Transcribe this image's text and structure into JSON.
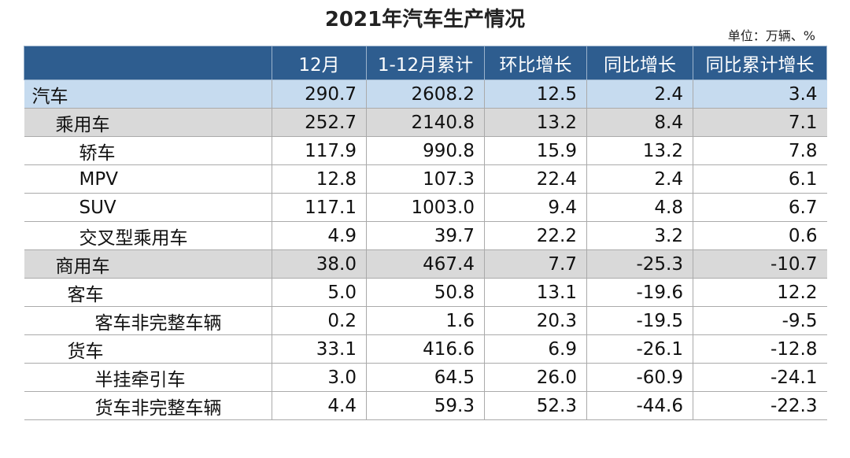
{
  "header": {
    "title": "2021年汽车生产情况",
    "unit": "单位：万辆、%"
  },
  "table": {
    "columns": [
      "",
      "12月",
      "1-12月累计",
      "环比增长",
      "同比增长",
      "同比累计增长"
    ],
    "rows": [
      [
        "汽车",
        "290.7",
        "2608.2",
        "12.5",
        "2.4",
        "3.4"
      ],
      [
        "乘用车",
        "252.7",
        "2140.8",
        "13.2",
        "8.4",
        "7.1"
      ],
      [
        "轿车",
        "117.9",
        "990.8",
        "15.9",
        "13.2",
        "7.8"
      ],
      [
        "MPV",
        "12.8",
        "107.3",
        "22.4",
        "2.4",
        "6.1"
      ],
      [
        "SUV",
        "117.1",
        "1003.0",
        "9.4",
        "4.8",
        "6.7"
      ],
      [
        "交叉型乘用车",
        "4.9",
        "39.7",
        "22.2",
        "3.2",
        "0.6"
      ],
      [
        "商用车",
        "38.0",
        "467.4",
        "7.7",
        "-25.3",
        "-10.7"
      ],
      [
        "客车",
        "5.0",
        "50.8",
        "13.1",
        "-19.6",
        "12.2"
      ],
      [
        "客车非完整车辆",
        "0.2",
        "1.6",
        "20.3",
        "-19.5",
        "-9.5"
      ],
      [
        "货车",
        "33.1",
        "416.6",
        "6.9",
        "-26.1",
        "-12.8"
      ],
      [
        "半挂牵引车",
        "3.0",
        "64.5",
        "26.0",
        "-60.9",
        "-24.1"
      ],
      [
        "货车非完整车辆",
        "4.4",
        "59.3",
        "52.3",
        "-44.6",
        "-22.3"
      ]
    ]
  }
}
